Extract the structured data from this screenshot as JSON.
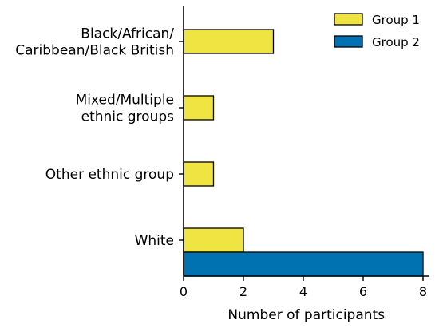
{
  "chart_data": {
    "type": "bar",
    "orientation": "horizontal",
    "categories": [
      [
        "Black/African/",
        "Caribbean/Black British"
      ],
      [
        "Mixed/Multiple",
        "ethnic groups"
      ],
      [
        "Other ethnic group"
      ],
      [
        "White"
      ]
    ],
    "series": [
      {
        "name": "Group 1",
        "values": [
          3,
          1,
          1,
          2
        ],
        "color": "#f0e442"
      },
      {
        "name": "Group 2",
        "values": [
          0,
          0,
          0,
          8
        ],
        "color": "#0072b2"
      }
    ],
    "xlabel": "Number of participants",
    "ylabel": "",
    "xlim": [
      0,
      8.2
    ],
    "xticks": [
      0,
      2,
      4,
      6,
      8
    ],
    "grid": false,
    "legend_position": "top-right"
  }
}
